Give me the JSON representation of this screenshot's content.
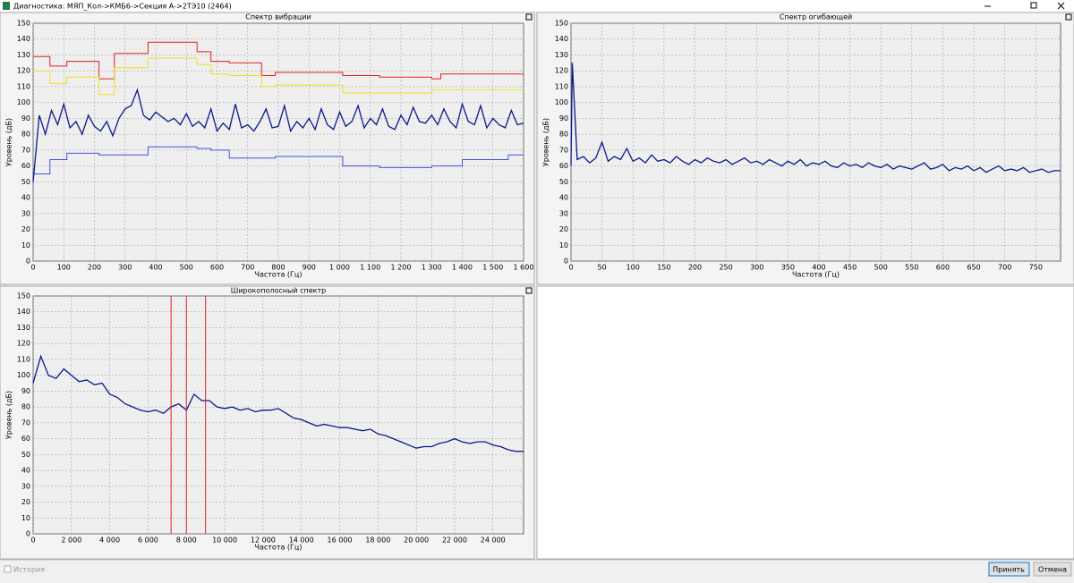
{
  "window": {
    "title": "Диагностика: МЯП_Кол->КМБ6->Секция А->2ТЭ10 (2464)"
  },
  "chart_data": [
    {
      "type": "line",
      "title": "Спектр вибрации",
      "xlabel": "Частота (Гц)",
      "ylabel": "Уровень (дБ)",
      "grid": true,
      "xlim": [
        0,
        1600
      ],
      "ylim": [
        0,
        150
      ],
      "xticks": [
        0,
        100,
        200,
        300,
        400,
        500,
        600,
        700,
        800,
        900,
        {
          "value": 1000,
          "label": "1 000"
        },
        {
          "value": 1100,
          "label": "1 100"
        },
        {
          "value": 1200,
          "label": "1 200"
        },
        {
          "value": 1300,
          "label": "1 300"
        },
        {
          "value": 1400,
          "label": "1 400"
        },
        {
          "value": 1500,
          "label": "1 500"
        },
        {
          "value": 1600,
          "label": "1 600"
        }
      ],
      "yticks": [
        0,
        10,
        20,
        30,
        40,
        50,
        60,
        70,
        80,
        90,
        100,
        110,
        120,
        130,
        140,
        150
      ],
      "series": [
        {
          "color": "#e02020",
          "x": [
            0,
            55,
            55,
            110,
            110,
            215,
            215,
            265,
            265,
            375,
            375,
            535,
            535,
            580,
            580,
            640,
            640,
            745,
            745,
            790,
            790,
            1010,
            1010,
            1130,
            1130,
            1300,
            1300,
            1330,
            1330,
            1600
          ],
          "values": [
            129,
            129,
            123,
            123,
            126,
            126,
            115,
            115,
            131,
            131,
            138,
            138,
            132,
            132,
            126,
            126,
            125,
            125,
            117,
            117,
            119,
            119,
            117,
            117,
            116,
            116,
            115,
            115,
            118,
            118
          ]
        },
        {
          "color": "#f0e020",
          "x": [
            0,
            55,
            55,
            110,
            110,
            215,
            215,
            265,
            265,
            375,
            375,
            535,
            535,
            580,
            580,
            640,
            640,
            745,
            745,
            790,
            790,
            1010,
            1010,
            1300,
            1300,
            1600
          ],
          "values": [
            120,
            120,
            112,
            112,
            116,
            116,
            105,
            105,
            122,
            122,
            128,
            128,
            124,
            124,
            118,
            118,
            117,
            117,
            110,
            110,
            111,
            111,
            106,
            106,
            108,
            108
          ]
        },
        {
          "color": "#4050e0",
          "x": [
            0,
            0,
            55,
            55,
            110,
            110,
            215,
            215,
            265,
            265,
            375,
            375,
            535,
            535,
            580,
            580,
            640,
            640,
            745,
            745,
            790,
            790,
            1010,
            1010,
            1130,
            1130,
            1300,
            1300,
            1400,
            1400,
            1550,
            1550,
            1600
          ],
          "values": [
            48,
            55,
            55,
            64,
            64,
            68,
            68,
            67,
            67,
            67,
            67,
            72,
            72,
            71,
            71,
            70,
            70,
            65,
            65,
            65,
            65,
            66,
            66,
            60,
            60,
            59,
            59,
            60,
            60,
            64,
            64,
            67,
            67
          ]
        },
        {
          "color": "#0a1a8a",
          "x": [
            0,
            20,
            40,
            60,
            80,
            100,
            120,
            140,
            160,
            180,
            200,
            220,
            240,
            260,
            280,
            300,
            320,
            340,
            360,
            380,
            400,
            420,
            440,
            460,
            480,
            500,
            520,
            540,
            560,
            580,
            600,
            620,
            640,
            660,
            680,
            700,
            720,
            740,
            760,
            780,
            800,
            820,
            840,
            860,
            880,
            900,
            920,
            940,
            960,
            980,
            1000,
            1020,
            1040,
            1060,
            1080,
            1100,
            1120,
            1140,
            1160,
            1180,
            1200,
            1220,
            1240,
            1260,
            1280,
            1300,
            1320,
            1340,
            1360,
            1380,
            1400,
            1420,
            1440,
            1460,
            1480,
            1500,
            1520,
            1540,
            1560,
            1580,
            1600
          ],
          "values": [
            50,
            92,
            80,
            95,
            86,
            99,
            84,
            88,
            80,
            92,
            85,
            82,
            88,
            79,
            90,
            96,
            98,
            108,
            92,
            89,
            94,
            91,
            88,
            90,
            86,
            93,
            85,
            88,
            84,
            96,
            82,
            87,
            83,
            99,
            84,
            86,
            82,
            88,
            96,
            84,
            85,
            98,
            82,
            88,
            84,
            90,
            83,
            96,
            86,
            83,
            94,
            85,
            88,
            98,
            84,
            90,
            86,
            96,
            85,
            83,
            92,
            86,
            97,
            88,
            87,
            92,
            86,
            96,
            88,
            84,
            99,
            88,
            86,
            98,
            84,
            90,
            86,
            84,
            95,
            86,
            87
          ]
        }
      ]
    },
    {
      "type": "line",
      "title": "Спектр огибающей",
      "xlabel": "Частота (Гц)",
      "ylabel": "Уровень (дБ)",
      "grid": true,
      "xlim": [
        0,
        790
      ],
      "ylim": [
        0,
        150
      ],
      "xticks": [
        0,
        50,
        100,
        150,
        200,
        250,
        300,
        350,
        400,
        450,
        500,
        550,
        600,
        650,
        700,
        750
      ],
      "yticks": [
        0,
        10,
        20,
        30,
        40,
        50,
        60,
        70,
        80,
        90,
        100,
        110,
        120,
        130,
        140,
        150
      ],
      "series": [
        {
          "color": "#0a1a8a",
          "x": [
            0,
            2,
            10,
            20,
            30,
            40,
            50,
            60,
            70,
            80,
            90,
            100,
            110,
            120,
            130,
            140,
            150,
            160,
            170,
            180,
            190,
            200,
            210,
            220,
            230,
            240,
            250,
            260,
            270,
            280,
            290,
            300,
            310,
            320,
            330,
            340,
            350,
            360,
            370,
            380,
            390,
            400,
            410,
            420,
            430,
            440,
            450,
            460,
            470,
            480,
            490,
            500,
            510,
            520,
            530,
            540,
            550,
            560,
            570,
            580,
            590,
            600,
            610,
            620,
            630,
            640,
            650,
            660,
            670,
            680,
            690,
            700,
            710,
            720,
            730,
            740,
            750,
            760,
            770,
            780,
            790
          ],
          "values": [
            60,
            125,
            64,
            66,
            62,
            65,
            75,
            63,
            66,
            64,
            71,
            63,
            65,
            62,
            67,
            63,
            64,
            62,
            66,
            63,
            61,
            64,
            62,
            65,
            63,
            62,
            64,
            61,
            63,
            65,
            62,
            63,
            61,
            64,
            62,
            60,
            63,
            61,
            64,
            60,
            62,
            61,
            63,
            60,
            59,
            62,
            60,
            61,
            59,
            62,
            60,
            59,
            61,
            58,
            60,
            59,
            58,
            60,
            62,
            58,
            59,
            61,
            57,
            59,
            58,
            60,
            57,
            59,
            56,
            58,
            60,
            57,
            58,
            57,
            59,
            56,
            57,
            58,
            56,
            57,
            57
          ]
        }
      ]
    },
    {
      "type": "line",
      "title": "Широкополосный спектр",
      "xlabel": "Частота (Гц)",
      "ylabel": "Уровень (дБ)",
      "grid": true,
      "xlim": [
        0,
        25600
      ],
      "ylim": [
        0,
        150
      ],
      "xticks": [
        0,
        {
          "value": 2000,
          "label": "2 000"
        },
        {
          "value": 4000,
          "label": "4 000"
        },
        {
          "value": 6000,
          "label": "6 000"
        },
        {
          "value": 8000,
          "label": "8 000"
        },
        {
          "value": 10000,
          "label": "10 000"
        },
        {
          "value": 12000,
          "label": "12 000"
        },
        {
          "value": 14000,
          "label": "14 000"
        },
        {
          "value": 16000,
          "label": "16 000"
        },
        {
          "value": 18000,
          "label": "18 000"
        },
        {
          "value": 20000,
          "label": "20 000"
        },
        {
          "value": 22000,
          "label": "22 000"
        },
        {
          "value": 24000,
          "label": "24 000"
        }
      ],
      "yticks": [
        0,
        10,
        20,
        30,
        40,
        50,
        60,
        70,
        80,
        90,
        100,
        110,
        120,
        130,
        140,
        150
      ],
      "cursors": [
        7200,
        8000,
        9000
      ],
      "cursor_color": "#e02020",
      "series": [
        {
          "color": "#0a1a8a",
          "x": [
            0,
            400,
            800,
            1200,
            1600,
            2000,
            2400,
            2800,
            3200,
            3600,
            4000,
            4400,
            4800,
            5200,
            5600,
            6000,
            6400,
            6800,
            7200,
            7600,
            8000,
            8400,
            8800,
            9200,
            9600,
            10000,
            10400,
            10800,
            11200,
            11600,
            12000,
            12400,
            12800,
            13200,
            13600,
            14000,
            14400,
            14800,
            15200,
            15600,
            16000,
            16400,
            16800,
            17200,
            17600,
            18000,
            18400,
            18800,
            19200,
            19600,
            20000,
            20400,
            20800,
            21200,
            21600,
            22000,
            22400,
            22800,
            23200,
            23600,
            24000,
            24400,
            24800,
            25200,
            25600
          ],
          "values": [
            95,
            112,
            100,
            98,
            104,
            100,
            96,
            97,
            94,
            95,
            88,
            86,
            82,
            80,
            78,
            77,
            78,
            76,
            80,
            82,
            78,
            88,
            84,
            84,
            80,
            79,
            80,
            78,
            79,
            77,
            78,
            78,
            79,
            76,
            73,
            72,
            70,
            68,
            69,
            68,
            67,
            67,
            66,
            65,
            66,
            63,
            62,
            60,
            58,
            56,
            54,
            55,
            55,
            57,
            58,
            60,
            58,
            57,
            58,
            58,
            56,
            55,
            53,
            52,
            52
          ]
        }
      ]
    }
  ],
  "footer": {
    "history": "История",
    "ok": "Принять",
    "cancel": "Отмена"
  }
}
